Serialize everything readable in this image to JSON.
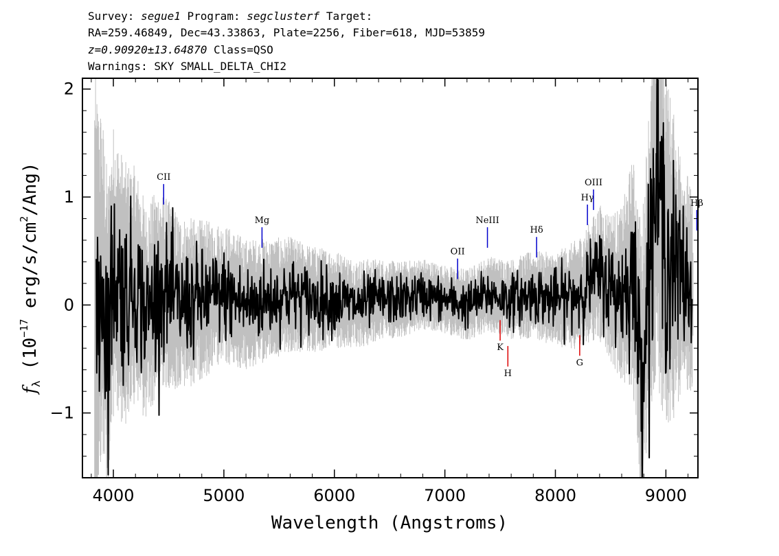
{
  "header": {
    "survey_label": "Survey:",
    "survey": "segue1",
    "program_label": "Program:",
    "program": "segclusterf",
    "target_label": "Target:",
    "line2": "RA=259.46849, Dec=43.33863, Plate=2256, Fiber=618, MJD=53859",
    "redshift": "z=0.90920±13.64870",
    "class_text": "Class=QSO",
    "warnings": "Warnings: SKY SMALL_DELTA_CHI2"
  },
  "chart_data": {
    "type": "line",
    "xlabel": "Wavelength (Angstroms)",
    "ylabel": "f_λ (10^-17 erg/s/cm²/Ang)",
    "xlim": [
      3720,
      9290
    ],
    "ylim": [
      -1.6,
      2.1
    ],
    "x_ticks": [
      4000,
      5000,
      6000,
      7000,
      8000,
      9000
    ],
    "y_ticks": [
      -1,
      0,
      1,
      2
    ],
    "grid": false,
    "series": [
      {
        "role": "error-band",
        "color": "#c0c0c0",
        "description_points": {
          "x": [
            3830,
            3900,
            4000,
            4200,
            4500,
            5000,
            5500,
            6000,
            6500,
            7000,
            7500,
            8000,
            8300,
            8600,
            8800,
            8950,
            9100,
            9250
          ],
          "halfwidth": [
            1.5,
            1.1,
            0.95,
            0.75,
            0.6,
            0.45,
            0.38,
            0.32,
            0.25,
            0.22,
            0.25,
            0.3,
            0.38,
            0.55,
            0.95,
            1.3,
            0.9,
            0.6
          ]
        }
      },
      {
        "role": "flux",
        "color": "#000000",
        "x": [
          3850,
          3900,
          3950,
          4000,
          4100,
          4200,
          4300,
          4400,
          4500,
          4600,
          4800,
          5000,
          5200,
          5400,
          5600,
          5800,
          6000,
          6200,
          6400,
          6600,
          6800,
          7000,
          7200,
          7400,
          7600,
          7800,
          8000,
          8200,
          8300,
          8400,
          8500,
          8600,
          8700,
          8780,
          8850,
          8920,
          9000,
          9100,
          9200,
          9240
        ],
        "y": [
          0.0,
          0.2,
          -0.3,
          0.3,
          0.1,
          0.2,
          -0.1,
          0.15,
          0.1,
          0.0,
          0.05,
          0.1,
          0.0,
          0.05,
          0.1,
          0.05,
          0.05,
          0.0,
          0.05,
          0.05,
          0.1,
          0.05,
          0.0,
          0.1,
          0.05,
          0.1,
          0.05,
          0.1,
          0.2,
          0.3,
          0.15,
          0.1,
          0.3,
          -0.6,
          0.4,
          1.2,
          0.5,
          0.3,
          0.2,
          0.1
        ]
      }
    ],
    "emission_lines": [
      {
        "label": "CII",
        "x": 4455,
        "y_top": 1.12,
        "y_bottom": 0.93
      },
      {
        "label": "Mg",
        "x": 5345,
        "y_top": 0.72,
        "y_bottom": 0.53
      },
      {
        "label": "OII",
        "x": 7115,
        "y_top": 0.43,
        "y_bottom": 0.24
      },
      {
        "label": "NeIII",
        "x": 7385,
        "y_top": 0.72,
        "y_bottom": 0.53
      },
      {
        "label": "Hδ",
        "x": 7830,
        "y_top": 0.63,
        "y_bottom": 0.44
      },
      {
        "label": "Hγ",
        "x": 8290,
        "y_top": 0.93,
        "y_bottom": 0.74
      },
      {
        "label": "OIII",
        "x": 8345,
        "y_top": 1.07,
        "y_bottom": 0.88
      },
      {
        "label": "Hβ",
        "x": 9280,
        "y_top": 0.88,
        "y_bottom": 0.69
      }
    ],
    "absorption_lines": [
      {
        "label": "K",
        "x": 7500,
        "y_top": -0.14,
        "y_bottom": -0.33
      },
      {
        "label": "H",
        "x": 7570,
        "y_top": -0.38,
        "y_bottom": -0.57
      },
      {
        "label": "G",
        "x": 8220,
        "y_top": -0.28,
        "y_bottom": -0.47
      }
    ],
    "emission_color": "#0000cc",
    "absorption_color": "#dd0000"
  }
}
